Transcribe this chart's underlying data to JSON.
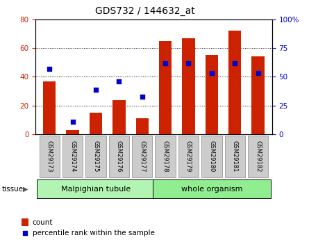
{
  "title": "GDS732 / 144632_at",
  "categories": [
    "GSM29173",
    "GSM29174",
    "GSM29175",
    "GSM29176",
    "GSM29177",
    "GSM29178",
    "GSM29179",
    "GSM29180",
    "GSM29181",
    "GSM29182"
  ],
  "count_values": [
    37,
    3,
    15,
    24,
    11,
    65,
    67,
    55,
    72,
    54
  ],
  "percentile_values": [
    57,
    11,
    39,
    46,
    33,
    62,
    62,
    53,
    62,
    53
  ],
  "bar_color": "#CC2200",
  "dot_color": "#0000CC",
  "left_ylim": [
    0,
    80
  ],
  "right_ylim": [
    0,
    100
  ],
  "left_yticks": [
    0,
    20,
    40,
    60,
    80
  ],
  "right_yticks": [
    0,
    25,
    50,
    75,
    100
  ],
  "right_yticklabels": [
    "0",
    "25",
    "50",
    "75",
    "100%"
  ],
  "tissue_groups": [
    {
      "label": "Malpighian tubule",
      "start": 0,
      "end": 5,
      "color": "#b2f5b2"
    },
    {
      "label": "whole organism",
      "start": 5,
      "end": 10,
      "color": "#90ee90"
    }
  ],
  "legend_count_label": "count",
  "legend_percentile_label": "percentile rank within the sample",
  "tissue_label": "tissue",
  "tick_label_bg": "#cccccc"
}
